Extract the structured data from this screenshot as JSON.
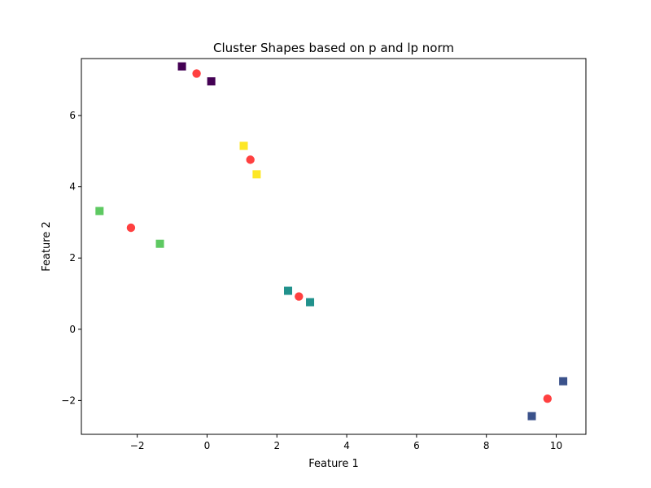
{
  "chart_data": {
    "type": "scatter",
    "title": "Cluster Shapes based on p and lp norm",
    "xlabel": "Feature 1",
    "ylabel": "Feature 2",
    "xlim": [
      -3.6,
      10.85
    ],
    "ylim": [
      -2.95,
      7.6
    ],
    "xticks": [
      -2,
      0,
      2,
      4,
      6,
      8,
      10
    ],
    "yticks": [
      -2,
      0,
      2,
      4,
      6
    ],
    "grid": false,
    "series": [
      {
        "marker": "square",
        "points": [
          {
            "x": -0.72,
            "y": 7.38,
            "color": "#440154"
          },
          {
            "x": 0.12,
            "y": 6.96,
            "color": "#440154"
          },
          {
            "x": 1.05,
            "y": 5.15,
            "color": "#fde725"
          },
          {
            "x": 1.42,
            "y": 4.35,
            "color": "#fde725"
          },
          {
            "x": -3.08,
            "y": 3.32,
            "color": "#5ec962"
          },
          {
            "x": -1.35,
            "y": 2.4,
            "color": "#5ec962"
          },
          {
            "x": 2.32,
            "y": 1.08,
            "color": "#21918c"
          },
          {
            "x": 2.95,
            "y": 0.76,
            "color": "#21918c"
          },
          {
            "x": 10.2,
            "y": -1.46,
            "color": "#3b528b"
          },
          {
            "x": 9.3,
            "y": -2.44,
            "color": "#3b528b"
          }
        ]
      },
      {
        "marker": "circle",
        "color": "#ff0000",
        "points": [
          {
            "x": -0.3,
            "y": 7.18
          },
          {
            "x": 1.24,
            "y": 4.76
          },
          {
            "x": -2.18,
            "y": 2.85
          },
          {
            "x": 2.63,
            "y": 0.92
          },
          {
            "x": 9.75,
            "y": -1.95
          }
        ]
      }
    ]
  }
}
